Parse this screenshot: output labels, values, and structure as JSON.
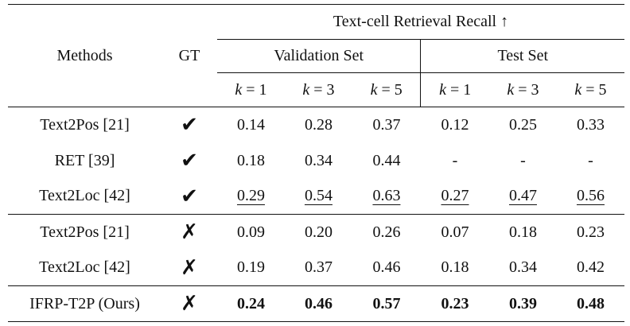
{
  "header": {
    "methods": "Methods",
    "gt": "GT",
    "group_title": "Text-cell Retrieval Recall ↑",
    "validation": "Validation Set",
    "test": "Test Set",
    "k_var": "k",
    "k_cols": [
      "= 1",
      "= 3",
      "= 5",
      "= 1",
      "= 3",
      "= 5"
    ]
  },
  "rows": [
    {
      "method": "Text2Pos [21]",
      "gt": "✔",
      "values": [
        "0.14",
        "0.28",
        "0.37",
        "0.12",
        "0.25",
        "0.33"
      ]
    },
    {
      "method": "RET [39]",
      "gt": "✔",
      "values": [
        "0.18",
        "0.34",
        "0.44",
        "-",
        "-",
        "-"
      ]
    },
    {
      "method": "Text2Loc [42]",
      "gt": "✔",
      "values": [
        "0.29",
        "0.54",
        "0.63",
        "0.27",
        "0.47",
        "0.56"
      ],
      "style": "underline"
    },
    {
      "method": "Text2Pos [21]",
      "gt": "✗",
      "values": [
        "0.09",
        "0.20",
        "0.26",
        "0.07",
        "0.18",
        "0.23"
      ]
    },
    {
      "method": "Text2Loc [42]",
      "gt": "✗",
      "values": [
        "0.19",
        "0.37",
        "0.46",
        "0.18",
        "0.34",
        "0.42"
      ]
    },
    {
      "method": "IFRP-T2P (Ours)",
      "gt": "✗",
      "values": [
        "0.24",
        "0.46",
        "0.57",
        "0.23",
        "0.39",
        "0.48"
      ],
      "style": "bold"
    }
  ]
}
